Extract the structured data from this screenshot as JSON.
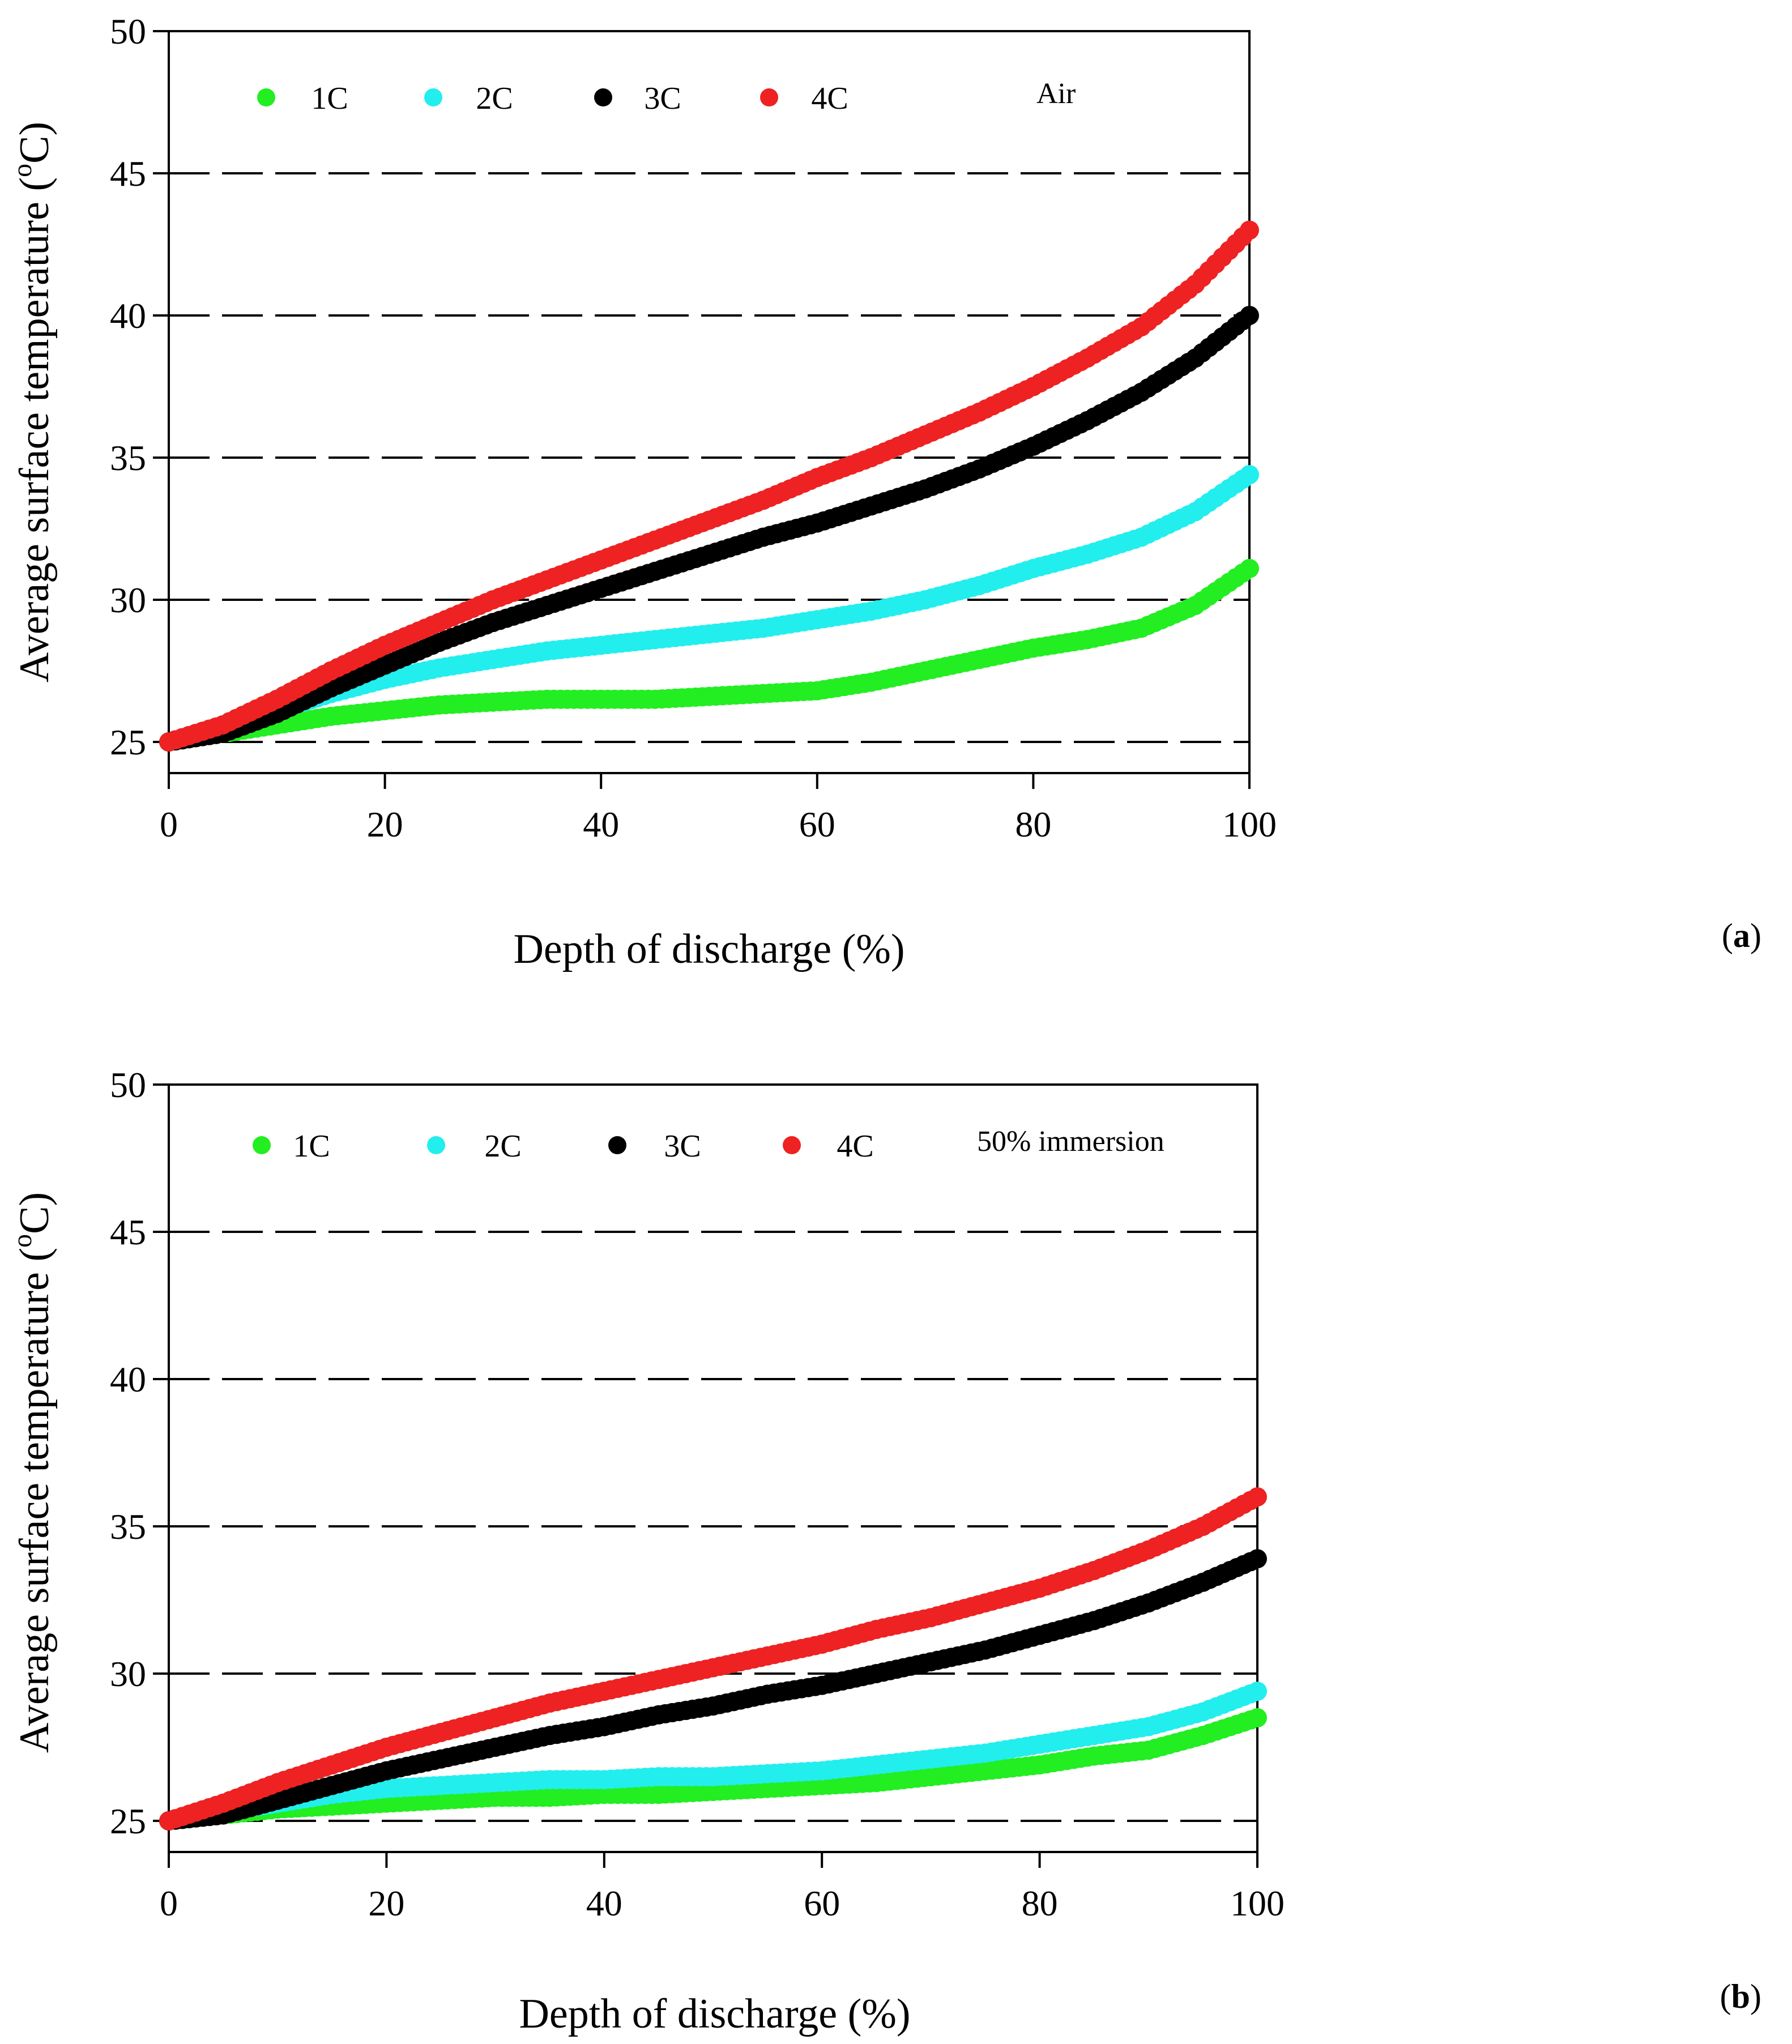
{
  "chart_data": [
    {
      "type": "scatter",
      "panel_label": "a",
      "condition_label": "Air",
      "xlabel": "Depth of discharge (%)",
      "ylabel": "Average surface temperature (",
      "ylabel_sup": "o",
      "ylabel_tail": "C)",
      "xlim": [
        0,
        100
      ],
      "ylim": [
        25,
        50
      ],
      "x_ticks": [
        "0",
        "20",
        "40",
        "60",
        "80",
        "100"
      ],
      "y_ticks": [
        "25",
        "30",
        "35",
        "40",
        "45",
        "50"
      ],
      "grid": "dashed horizontal at 25, 30, 35, 40, 45",
      "legend_position": "top",
      "series": [
        {
          "name": "1C",
          "color": "#22ee22",
          "x": [
            0,
            5,
            10,
            15,
            20,
            25,
            30,
            35,
            40,
            45,
            50,
            55,
            60,
            65,
            70,
            75,
            80,
            85,
            90,
            95,
            100
          ],
          "y": [
            25.0,
            25.3,
            25.6,
            25.9,
            26.1,
            26.3,
            26.4,
            26.5,
            26.5,
            26.5,
            26.6,
            26.7,
            26.8,
            27.1,
            27.5,
            27.9,
            28.3,
            28.6,
            29.0,
            29.8,
            31.1
          ]
        },
        {
          "name": "2C",
          "color": "#22eeee",
          "x": [
            0,
            5,
            10,
            15,
            20,
            25,
            30,
            35,
            40,
            45,
            50,
            55,
            60,
            65,
            70,
            75,
            80,
            85,
            90,
            95,
            100
          ],
          "y": [
            25.0,
            25.5,
            26.1,
            26.7,
            27.2,
            27.6,
            27.9,
            28.2,
            28.4,
            28.6,
            28.8,
            29.0,
            29.3,
            29.6,
            30.0,
            30.5,
            31.1,
            31.6,
            32.2,
            33.1,
            34.4
          ]
        },
        {
          "name": "3C",
          "color": "#000000",
          "x": [
            0,
            5,
            10,
            15,
            20,
            25,
            30,
            35,
            40,
            45,
            50,
            55,
            60,
            65,
            70,
            75,
            80,
            85,
            90,
            95,
            100
          ],
          "y": [
            25.0,
            25.3,
            26.0,
            26.9,
            27.7,
            28.5,
            29.2,
            29.8,
            30.4,
            31.0,
            31.6,
            32.2,
            32.7,
            33.3,
            33.9,
            34.6,
            35.4,
            36.3,
            37.3,
            38.5,
            40.0
          ]
        },
        {
          "name": "4C",
          "color": "#ee2222",
          "x": [
            0,
            5,
            10,
            15,
            20,
            25,
            30,
            35,
            40,
            45,
            50,
            55,
            60,
            65,
            70,
            75,
            80,
            85,
            90,
            95,
            100
          ],
          "y": [
            25.0,
            25.6,
            26.5,
            27.5,
            28.4,
            29.2,
            30.0,
            30.7,
            31.4,
            32.1,
            32.8,
            33.5,
            34.3,
            35.0,
            35.8,
            36.6,
            37.5,
            38.5,
            39.6,
            41.1,
            43.0
          ]
        }
      ]
    },
    {
      "type": "scatter",
      "panel_label": "b",
      "condition_label": "50% immersion",
      "xlabel": "Depth of discharge (%)",
      "ylabel": "Average surface temperature (",
      "ylabel_sup": "o",
      "ylabel_tail": "C)",
      "xlim": [
        0,
        100
      ],
      "ylim": [
        25,
        50
      ],
      "x_ticks": [
        "0",
        "20",
        "40",
        "60",
        "80",
        "100"
      ],
      "y_ticks": [
        "25",
        "30",
        "35",
        "40",
        "45",
        "50"
      ],
      "grid": "dashed horizontal at 25, 30, 35, 40, 45",
      "legend_position": "top",
      "series": [
        {
          "name": "1C",
          "color": "#22ee22",
          "x": [
            0,
            5,
            10,
            15,
            20,
            25,
            30,
            35,
            40,
            45,
            50,
            55,
            60,
            65,
            70,
            75,
            80,
            85,
            90,
            95,
            100
          ],
          "y": [
            25.0,
            25.2,
            25.4,
            25.5,
            25.6,
            25.7,
            25.8,
            25.8,
            25.9,
            25.9,
            26.0,
            26.1,
            26.2,
            26.3,
            26.5,
            26.7,
            26.9,
            27.2,
            27.4,
            27.9,
            28.5
          ]
        },
        {
          "name": "2C",
          "color": "#22eeee",
          "x": [
            0,
            5,
            10,
            15,
            20,
            25,
            30,
            35,
            40,
            45,
            50,
            55,
            60,
            65,
            70,
            75,
            80,
            85,
            90,
            95,
            100
          ],
          "y": [
            25.0,
            25.3,
            25.6,
            25.9,
            26.1,
            26.2,
            26.3,
            26.4,
            26.4,
            26.5,
            26.5,
            26.6,
            26.7,
            26.9,
            27.1,
            27.3,
            27.6,
            27.9,
            28.2,
            28.7,
            29.4
          ]
        },
        {
          "name": "3C",
          "color": "#000000",
          "x": [
            0,
            5,
            10,
            15,
            20,
            25,
            30,
            35,
            40,
            45,
            50,
            55,
            60,
            65,
            70,
            75,
            80,
            85,
            90,
            95,
            100
          ],
          "y": [
            25.0,
            25.2,
            25.7,
            26.2,
            26.7,
            27.1,
            27.5,
            27.9,
            28.2,
            28.6,
            28.9,
            29.3,
            29.6,
            30.0,
            30.4,
            30.8,
            31.3,
            31.8,
            32.4,
            33.1,
            33.9
          ]
        },
        {
          "name": "4C",
          "color": "#ee2222",
          "x": [
            0,
            5,
            10,
            15,
            20,
            25,
            30,
            35,
            40,
            45,
            50,
            55,
            60,
            65,
            70,
            75,
            80,
            85,
            90,
            95,
            100
          ],
          "y": [
            25.0,
            25.6,
            26.3,
            26.9,
            27.5,
            28.0,
            28.5,
            29.0,
            29.4,
            29.8,
            30.2,
            30.6,
            31.0,
            31.5,
            31.9,
            32.4,
            32.9,
            33.5,
            34.2,
            35.0,
            36.0
          ]
        }
      ]
    }
  ]
}
